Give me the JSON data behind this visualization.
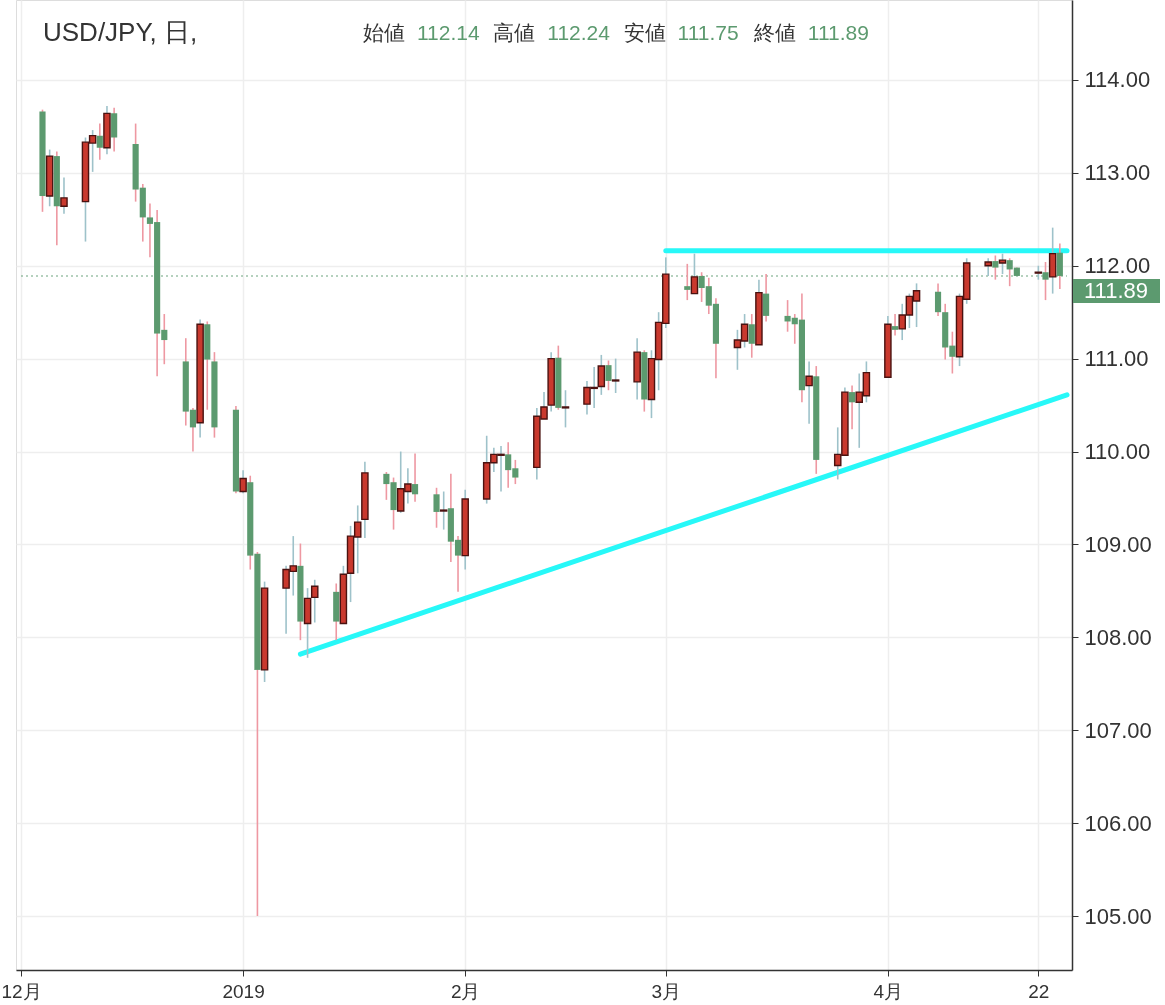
{
  "chart_data": {
    "type": "candlestick",
    "title": "USD/JPY, 日,",
    "subtitle": "始値 112.14 高値 112.24 安値 111.75 終値 111.89",
    "x": [
      "2018-12-04",
      "2018-12-05",
      "2018-12-06",
      "2018-12-07",
      "2018-12-10",
      "2018-12-11",
      "2018-12-12",
      "2018-12-13",
      "2018-12-14",
      "2018-12-17",
      "2018-12-18",
      "2018-12-19",
      "2018-12-20",
      "2018-12-21",
      "2018-12-24",
      "2018-12-25",
      "2018-12-26",
      "2018-12-27",
      "2018-12-28",
      "2018-12-31",
      "2019-01-01",
      "2019-01-02",
      "2019-01-03",
      "2019-01-04",
      "2019-01-07",
      "2019-01-08",
      "2019-01-09",
      "2019-01-10",
      "2019-01-11",
      "2019-01-14",
      "2019-01-15",
      "2019-01-16",
      "2019-01-17",
      "2019-01-18",
      "2019-01-21",
      "2019-01-22",
      "2019-01-23",
      "2019-01-24",
      "2019-01-25",
      "2019-01-28",
      "2019-01-29",
      "2019-01-30",
      "2019-01-31",
      "2019-02-01",
      "2019-02-04",
      "2019-02-05",
      "2019-02-06",
      "2019-02-07",
      "2019-02-08",
      "2019-02-11",
      "2019-02-12",
      "2019-02-13",
      "2019-02-14",
      "2019-02-15",
      "2019-02-18",
      "2019-02-19",
      "2019-02-20",
      "2019-02-21",
      "2019-02-22",
      "2019-02-25",
      "2019-02-26",
      "2019-02-27",
      "2019-02-28",
      "2019-03-01",
      "2019-03-04",
      "2019-03-05",
      "2019-03-06",
      "2019-03-07",
      "2019-03-08",
      "2019-03-11",
      "2019-03-12",
      "2019-03-13",
      "2019-03-14",
      "2019-03-15",
      "2019-03-18",
      "2019-03-19",
      "2019-03-20",
      "2019-03-21",
      "2019-03-22",
      "2019-03-25",
      "2019-03-26",
      "2019-03-27",
      "2019-03-28",
      "2019-03-29",
      "2019-04-01",
      "2019-04-02",
      "2019-04-03",
      "2019-04-04",
      "2019-04-05",
      "2019-04-08",
      "2019-04-09",
      "2019-04-10",
      "2019-04-11",
      "2019-04-12",
      "2019-04-15",
      "2019-04-16",
      "2019-04-17",
      "2019-04-18",
      "2019-04-19",
      "2019-04-22",
      "2019-04-23",
      "2019-04-24",
      "2019-04-25"
    ],
    "ohlc": [
      [
        113.66,
        113.68,
        112.58,
        112.75
      ],
      [
        112.75,
        113.25,
        112.64,
        113.18
      ],
      [
        113.18,
        113.23,
        112.22,
        112.64
      ],
      [
        112.64,
        112.95,
        112.56,
        112.73
      ],
      [
        112.69,
        113.38,
        112.26,
        113.33
      ],
      [
        113.32,
        113.46,
        113.01,
        113.4
      ],
      [
        113.4,
        113.53,
        113.14,
        113.27
      ],
      [
        113.27,
        113.72,
        113.2,
        113.64
      ],
      [
        113.64,
        113.7,
        113.23,
        113.38
      ],
      [
        113.31,
        113.53,
        112.69,
        112.82
      ],
      [
        112.84,
        112.88,
        112.26,
        112.52
      ],
      [
        112.52,
        112.67,
        112.09,
        112.45
      ],
      [
        112.47,
        112.6,
        110.81,
        111.27
      ],
      [
        111.31,
        111.48,
        110.94,
        111.2
      ],
      [
        110.97,
        111.22,
        110.28,
        110.43
      ],
      [
        110.45,
        110.47,
        110.0,
        110.26
      ],
      [
        110.31,
        111.42,
        110.15,
        111.37
      ],
      [
        111.37,
        111.4,
        110.45,
        110.99
      ],
      [
        110.97,
        111.07,
        110.15,
        110.26
      ],
      [
        110.45,
        110.49,
        109.55,
        109.57
      ],
      [
        109.57,
        109.8,
        109.55,
        109.71
      ],
      [
        109.67,
        109.74,
        108.73,
        108.88
      ],
      [
        108.9,
        108.92,
        105.0,
        107.65
      ],
      [
        107.65,
        108.6,
        107.52,
        108.53
      ],
      [
        108.53,
        108.77,
        108.04,
        108.73
      ],
      [
        108.71,
        109.09,
        108.45,
        108.77
      ],
      [
        108.77,
        109.01,
        107.97,
        108.17
      ],
      [
        108.15,
        108.53,
        107.78,
        108.42
      ],
      [
        108.43,
        108.62,
        108.16,
        108.55
      ],
      [
        108.49,
        108.58,
        107.97,
        108.17
      ],
      [
        108.15,
        108.77,
        108.15,
        108.68
      ],
      [
        108.69,
        109.2,
        108.38,
        109.09
      ],
      [
        109.08,
        109.42,
        108.69,
        109.24
      ],
      [
        109.27,
        109.89,
        109.07,
        109.77
      ],
      [
        109.76,
        109.78,
        109.48,
        109.65
      ],
      [
        109.67,
        109.72,
        109.16,
        109.37
      ],
      [
        109.36,
        110.0,
        109.34,
        109.6
      ],
      [
        109.57,
        109.82,
        109.44,
        109.65
      ],
      [
        109.65,
        109.98,
        109.46,
        109.54
      ],
      [
        109.54,
        109.61,
        109.18,
        109.35
      ],
      [
        109.36,
        109.57,
        109.16,
        109.37
      ],
      [
        109.39,
        109.76,
        108.81,
        109.03
      ],
      [
        109.05,
        109.09,
        108.49,
        108.88
      ],
      [
        108.88,
        109.59,
        108.73,
        109.49
      ],
      [
        109.49,
        110.17,
        109.44,
        109.88
      ],
      [
        109.88,
        110.04,
        109.78,
        109.97
      ],
      [
        109.96,
        110.06,
        109.57,
        109.97
      ],
      [
        109.97,
        110.1,
        109.61,
        109.8
      ],
      [
        109.82,
        109.91,
        109.65,
        109.72
      ],
      [
        109.83,
        110.47,
        109.7,
        110.38
      ],
      [
        110.35,
        110.64,
        110.35,
        110.48
      ],
      [
        110.5,
        111.07,
        110.43,
        111.0
      ],
      [
        111.01,
        111.14,
        110.45,
        110.47
      ],
      [
        110.47,
        110.66,
        110.26,
        110.48
      ],
      [
        110.51,
        110.76,
        110.4,
        110.69
      ],
      [
        110.68,
        110.91,
        110.47,
        110.69
      ],
      [
        110.7,
        111.04,
        110.61,
        110.92
      ],
      [
        110.93,
        110.98,
        110.66,
        110.76
      ],
      [
        110.76,
        111.0,
        110.63,
        110.77
      ],
      [
        110.75,
        111.22,
        110.56,
        111.07
      ],
      [
        111.07,
        111.09,
        110.43,
        110.56
      ],
      [
        110.56,
        111.09,
        110.36,
        111.0
      ],
      [
        110.99,
        111.5,
        110.66,
        111.39
      ],
      [
        111.38,
        112.09,
        111.33,
        111.91
      ],
      [
        111.78,
        112.02,
        111.63,
        111.74
      ],
      [
        111.7,
        112.13,
        111.7,
        111.88
      ],
      [
        111.89,
        111.93,
        111.61,
        111.76
      ],
      [
        111.78,
        111.87,
        111.48,
        111.57
      ],
      [
        111.59,
        111.65,
        110.79,
        111.16
      ],
      [
        111.12,
        111.31,
        110.88,
        111.2
      ],
      [
        111.19,
        111.48,
        111.12,
        111.37
      ],
      [
        111.37,
        111.48,
        111.01,
        111.16
      ],
      [
        111.15,
        111.85,
        111.15,
        111.71
      ],
      [
        111.7,
        111.91,
        111.4,
        111.46
      ],
      [
        111.46,
        111.63,
        111.29,
        111.4
      ],
      [
        111.44,
        111.48,
        111.16,
        111.37
      ],
      [
        111.42,
        111.7,
        110.53,
        110.66
      ],
      [
        110.71,
        110.97,
        110.3,
        110.81
      ],
      [
        110.81,
        110.92,
        109.76,
        109.91
      ],
      [
        109.85,
        110.26,
        109.7,
        109.97
      ],
      [
        109.96,
        110.69,
        109.96,
        110.64
      ],
      [
        110.64,
        110.71,
        110.24,
        110.53
      ],
      [
        110.53,
        110.84,
        110.04,
        110.64
      ],
      [
        110.6,
        110.97,
        110.53,
        110.85
      ],
      [
        110.8,
        111.46,
        110.8,
        111.37
      ],
      [
        111.35,
        111.48,
        111.25,
        111.31
      ],
      [
        111.32,
        111.59,
        111.2,
        111.47
      ],
      [
        111.47,
        111.7,
        111.33,
        111.67
      ],
      [
        111.62,
        111.81,
        111.34,
        111.73
      ],
      [
        111.72,
        111.81,
        111.46,
        111.5
      ],
      [
        111.5,
        111.59,
        110.99,
        111.12
      ],
      [
        111.14,
        111.29,
        110.84,
        111.02
      ],
      [
        111.02,
        111.7,
        110.92,
        111.67
      ],
      [
        111.64,
        112.08,
        111.59,
        112.03
      ],
      [
        112.0,
        112.08,
        111.89,
        112.04
      ],
      [
        112.05,
        112.11,
        111.85,
        111.98
      ],
      [
        112.03,
        112.13,
        111.91,
        112.06
      ],
      [
        112.06,
        112.08,
        111.78,
        111.96
      ],
      [
        111.98,
        111.98,
        111.89,
        111.89
      ],
      [
        111.92,
        112.0,
        111.85,
        111.93
      ],
      [
        111.93,
        112.04,
        111.63,
        111.85
      ],
      [
        111.88,
        112.41,
        111.7,
        112.13
      ],
      [
        112.14,
        112.24,
        111.75,
        111.89
      ]
    ],
    "colors": [
      "#5c9a6f",
      "#c9392e",
      "#5c9a6f",
      "#c9392e",
      "#c9392e",
      "#c9392e",
      "#5c9a6f",
      "#c9392e",
      "#5c9a6f",
      "#5c9a6f",
      "#5c9a6f",
      "#5c9a6f",
      "#5c9a6f",
      "#5c9a6f",
      "#5c9a6f",
      "#5c9a6f",
      "#c9392e",
      "#5c9a6f",
      "#5c9a6f",
      "#5c9a6f",
      "#c9392e",
      "#5c9a6f",
      "#5c9a6f",
      "#c9392e",
      "#c9392e",
      "#c9392e",
      "#5c9a6f",
      "#c9392e",
      "#c9392e",
      "#5c9a6f",
      "#c9392e",
      "#c9392e",
      "#c9392e",
      "#c9392e",
      "#5c9a6f",
      "#5c9a6f",
      "#c9392e",
      "#c9392e",
      "#5c9a6f",
      "#5c9a6f",
      "#c9392e",
      "#5c9a6f",
      "#5c9a6f",
      "#c9392e",
      "#c9392e",
      "#c9392e",
      "#c9392e",
      "#5c9a6f",
      "#5c9a6f",
      "#c9392e",
      "#c9392e",
      "#c9392e",
      "#5c9a6f",
      "#c9392e",
      "#c9392e",
      "#c9392e",
      "#c9392e",
      "#5c9a6f",
      "#c9392e",
      "#c9392e",
      "#5c9a6f",
      "#c9392e",
      "#c9392e",
      "#c9392e",
      "#5c9a6f",
      "#c9392e",
      "#5c9a6f",
      "#5c9a6f",
      "#5c9a6f",
      "#c9392e",
      "#c9392e",
      "#5c9a6f",
      "#c9392e",
      "#5c9a6f",
      "#5c9a6f",
      "#5c9a6f",
      "#5c9a6f",
      "#c9392e",
      "#5c9a6f",
      "#c9392e",
      "#c9392e",
      "#5c9a6f",
      "#c9392e",
      "#c9392e",
      "#c9392e",
      "#5c9a6f",
      "#c9392e",
      "#c9392e",
      "#c9392e",
      "#5c9a6f",
      "#5c9a6f",
      "#5c9a6f",
      "#c9392e",
      "#c9392e",
      "#c9392e",
      "#5c9a6f",
      "#c9392e",
      "#5c9a6f",
      "#5c9a6f",
      "#c9392e",
      "#5c9a6f",
      "#c9392e",
      "#5c9a6f"
    ],
    "series": [
      {
        "type": "line",
        "x": [
          "2019-01-09",
          "2019-04-26"
        ],
        "values": [
          107.82,
          110.61
        ],
        "color": "#27f8f8"
      },
      {
        "type": "line",
        "x": [
          "2019-03-01",
          "2019-04-26"
        ],
        "values": [
          112.16,
          112.16
        ],
        "color": "#27f8f8"
      }
    ],
    "xlim": [
      "2018-12-01",
      "2019-04-26"
    ],
    "xticks": [
      {
        "value": "2018-12-01",
        "label": "12月"
      },
      {
        "value": "2019-01-01",
        "label": "2019"
      },
      {
        "value": "2019-02-01",
        "label": "2月"
      },
      {
        "value": "2019-03-01",
        "label": "3月"
      },
      {
        "value": "2019-04-01",
        "label": "4月"
      },
      {
        "value": "2019-04-22",
        "label": "22"
      }
    ],
    "ylim": [
      104.42,
      114.86
    ],
    "yticks": [
      {
        "value": 105,
        "label": "105.00"
      },
      {
        "value": 106,
        "label": "106.00"
      },
      {
        "value": 107,
        "label": "107.00"
      },
      {
        "value": 108,
        "label": "108.00"
      },
      {
        "value": 109,
        "label": "109.00"
      },
      {
        "value": 110,
        "label": "110.00"
      },
      {
        "value": 111,
        "label": "111.00"
      },
      {
        "value": 112,
        "label": "112.00"
      },
      {
        "value": 113,
        "label": "113.00"
      },
      {
        "value": 114,
        "label": "114.00"
      }
    ],
    "ref_lines": [
      {
        "axis": "y",
        "value": 111.89,
        "label": "111.89",
        "color": "#5c9a6f",
        "line_style": "dotted"
      }
    ],
    "grid": true
  }
}
